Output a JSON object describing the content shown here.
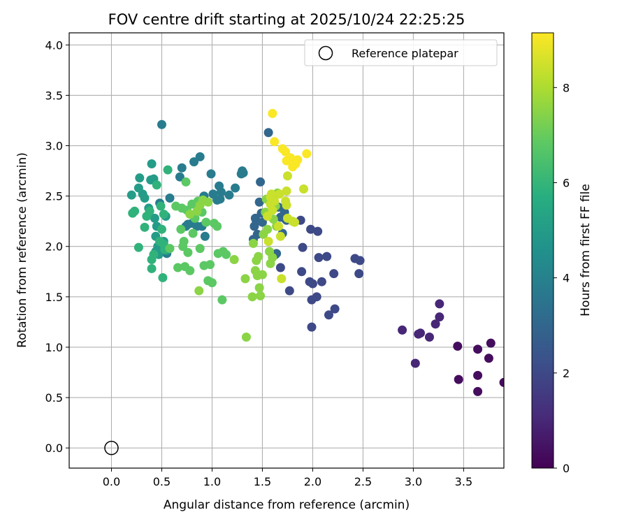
{
  "chart_data": {
    "type": "scatter",
    "title": "FOV centre drift starting at 2025/10/24 22:25:25",
    "xlabel": "Angular distance from reference (arcmin)",
    "ylabel": "Rotation from reference (arcmin)",
    "xlim": [
      -0.42,
      3.9
    ],
    "ylim": [
      -0.2,
      4.12
    ],
    "xticks": [
      "0.0",
      "0.5",
      "1.0",
      "1.5",
      "2.0",
      "2.5",
      "3.0",
      "3.5"
    ],
    "yticks": [
      "0.0",
      "0.5",
      "1.0",
      "1.5",
      "2.0",
      "2.5",
      "3.0",
      "3.5",
      "4.0"
    ],
    "grid": true,
    "legend": {
      "label": "Reference platepar",
      "placement": "top-right"
    },
    "reference_point": {
      "x": 0.0,
      "y": 0.0
    },
    "colorbar": {
      "label": "Hours from first FF file",
      "colormap": "viridis",
      "range": [
        0,
        9.15
      ],
      "ticks": [
        "0",
        "2",
        "4",
        "6",
        "8"
      ]
    },
    "series": [
      {
        "hours": 0.3,
        "points": [
          [
            3.77,
            1.04
          ],
          [
            3.75,
            0.89
          ],
          [
            3.64,
            0.98
          ],
          [
            3.64,
            0.72
          ],
          [
            3.64,
            0.56
          ],
          [
            3.45,
            0.68
          ],
          [
            3.44,
            1.01
          ],
          [
            3.9,
            0.65
          ]
        ]
      },
      {
        "hours": 1.0,
        "points": [
          [
            2.89,
            1.17
          ],
          [
            3.02,
            0.84
          ],
          [
            3.05,
            1.13
          ],
          [
            3.07,
            1.14
          ],
          [
            3.16,
            1.1
          ],
          [
            3.22,
            1.23
          ],
          [
            3.26,
            1.43
          ],
          [
            3.26,
            1.3
          ]
        ]
      },
      {
        "hours": 2.0,
        "points": [
          [
            1.88,
            2.26
          ],
          [
            1.9,
            1.99
          ],
          [
            1.89,
            1.75
          ],
          [
            1.97,
            1.65
          ],
          [
            1.98,
            2.17
          ],
          [
            1.99,
            1.47
          ],
          [
            2.0,
            1.63
          ],
          [
            1.99,
            1.2
          ],
          [
            2.04,
            1.5
          ],
          [
            2.05,
            2.15
          ],
          [
            2.06,
            1.89
          ],
          [
            2.09,
            1.65
          ],
          [
            2.14,
            1.9
          ],
          [
            2.16,
            1.32
          ],
          [
            2.21,
            1.73
          ],
          [
            2.22,
            1.38
          ],
          [
            2.42,
            1.88
          ],
          [
            2.47,
            1.86
          ],
          [
            2.46,
            1.73
          ],
          [
            1.77,
            1.56
          ],
          [
            1.68,
            1.79
          ]
        ]
      },
      {
        "hours": 3.0,
        "points": [
          [
            1.41,
            2.07
          ],
          [
            1.42,
            2.2
          ],
          [
            1.43,
            2.28
          ],
          [
            1.44,
            2.25
          ],
          [
            1.45,
            2.12
          ],
          [
            1.47,
            2.44
          ],
          [
            1.48,
            2.64
          ],
          [
            1.49,
            2.33
          ],
          [
            1.5,
            2.24
          ],
          [
            1.56,
            3.13
          ],
          [
            1.64,
            1.93
          ],
          [
            1.66,
            2.39
          ],
          [
            1.68,
            2.29
          ],
          [
            1.7,
            2.13
          ],
          [
            1.72,
            2.34
          ],
          [
            1.73,
            2.27
          ],
          [
            1.74,
            2.26
          ],
          [
            1.63,
            1.92
          ]
        ]
      },
      {
        "hours": 3.8,
        "points": [
          [
            0.48,
            2.43
          ],
          [
            0.5,
            3.21
          ],
          [
            0.55,
            1.93
          ],
          [
            0.58,
            2.48
          ],
          [
            0.68,
            2.69
          ],
          [
            0.7,
            2.78
          ],
          [
            0.82,
            2.84
          ],
          [
            0.88,
            2.89
          ],
          [
            0.9,
            2.2
          ],
          [
            0.92,
            2.5
          ],
          [
            0.93,
            2.1
          ],
          [
            0.99,
            2.72
          ],
          [
            1.01,
            2.52
          ],
          [
            1.05,
            2.46
          ],
          [
            1.07,
            2.6
          ],
          [
            1.08,
            2.47
          ],
          [
            1.09,
            2.54
          ],
          [
            1.17,
            2.51
          ],
          [
            1.23,
            2.58
          ],
          [
            1.29,
            2.72
          ],
          [
            1.3,
            2.75
          ],
          [
            1.31,
            2.73
          ],
          [
            0.8,
            2.23
          ],
          [
            0.85,
            2.2
          ],
          [
            0.74,
            2.2
          ],
          [
            0.76,
            2.22
          ]
        ]
      },
      {
        "hours": 5.0,
        "points": [
          [
            0.2,
            2.51
          ],
          [
            0.27,
            2.58
          ],
          [
            0.28,
            2.68
          ],
          [
            0.31,
            2.52
          ],
          [
            0.33,
            2.48
          ],
          [
            0.37,
            2.38
          ],
          [
            0.4,
            2.82
          ],
          [
            0.39,
            2.66
          ],
          [
            0.42,
            2.67
          ],
          [
            0.43,
            2.28
          ],
          [
            0.45,
            2.2
          ],
          [
            0.44,
            2.1
          ],
          [
            0.46,
            2.0
          ],
          [
            0.44,
            1.95
          ],
          [
            0.47,
            1.92
          ],
          [
            0.52,
            2.05
          ],
          [
            0.54,
            2.3
          ],
          [
            0.55,
            1.96
          ]
        ]
      },
      {
        "hours": 5.9,
        "points": [
          [
            0.21,
            2.33
          ],
          [
            0.23,
            2.35
          ],
          [
            0.27,
            1.99
          ],
          [
            0.33,
            2.19
          ],
          [
            0.35,
            2.3
          ],
          [
            0.38,
            2.35
          ],
          [
            0.4,
            1.78
          ],
          [
            0.4,
            1.87
          ],
          [
            0.42,
            1.92
          ],
          [
            0.45,
            2.61
          ],
          [
            0.48,
            2.05
          ],
          [
            0.5,
            2.17
          ],
          [
            0.51,
            1.69
          ],
          [
            0.52,
            2.02
          ],
          [
            0.53,
            1.97
          ],
          [
            0.56,
            2.76
          ],
          [
            0.49,
            2.4
          ],
          [
            0.52,
            2.32
          ]
        ]
      },
      {
        "hours": 6.8,
        "points": [
          [
            0.58,
            1.98
          ],
          [
            0.64,
            2.4
          ],
          [
            0.66,
            1.79
          ],
          [
            0.69,
            2.17
          ],
          [
            0.71,
            2.0
          ],
          [
            0.73,
            1.8
          ],
          [
            0.74,
            2.64
          ],
          [
            0.75,
            2.36
          ],
          [
            0.76,
            1.94
          ],
          [
            0.78,
            1.76
          ],
          [
            0.8,
            2.42
          ],
          [
            0.81,
            2.13
          ],
          [
            0.83,
            2.28
          ],
          [
            0.86,
            2.45
          ],
          [
            0.88,
            1.98
          ],
          [
            0.9,
            2.34
          ],
          [
            0.92,
            1.81
          ],
          [
            0.94,
            2.24
          ],
          [
            0.96,
            1.66
          ],
          [
            0.98,
            1.82
          ],
          [
            1.0,
            1.64
          ],
          [
            1.02,
            2.23
          ],
          [
            1.05,
            2.2
          ],
          [
            1.06,
            1.93
          ],
          [
            1.1,
            1.47
          ],
          [
            1.11,
            1.95
          ],
          [
            1.14,
            1.92
          ],
          [
            0.72,
            2.05
          ],
          [
            0.7,
            2.38
          ]
        ]
      },
      {
        "hours": 7.5,
        "points": [
          [
            0.78,
            2.32
          ],
          [
            0.85,
            2.35
          ],
          [
            0.88,
            2.41
          ],
          [
            0.91,
            2.46
          ],
          [
            0.96,
            2.44
          ],
          [
            0.87,
            1.56
          ],
          [
            1.22,
            1.87
          ],
          [
            1.34,
            1.1
          ],
          [
            1.33,
            1.68
          ],
          [
            1.4,
            1.5
          ],
          [
            1.43,
            1.76
          ],
          [
            1.44,
            1.86
          ],
          [
            1.45,
            1.71
          ],
          [
            1.46,
            1.9
          ],
          [
            1.47,
            1.59
          ],
          [
            1.48,
            1.51
          ],
          [
            1.5,
            1.72
          ],
          [
            1.41,
            2.03
          ],
          [
            1.51,
            2.12
          ],
          [
            1.53,
            2.34
          ],
          [
            1.55,
            2.17
          ],
          [
            1.54,
            2.47
          ],
          [
            1.57,
            1.95
          ],
          [
            1.58,
            1.83
          ],
          [
            1.6,
            1.89
          ],
          [
            1.61,
            2.27
          ],
          [
            1.63,
            2.4
          ],
          [
            1.64,
            2.2
          ],
          [
            1.65,
            2.53
          ]
        ]
      },
      {
        "hours": 8.4,
        "points": [
          [
            1.55,
            2.3
          ],
          [
            1.56,
            2.05
          ],
          [
            1.58,
            2.42
          ],
          [
            1.59,
            2.52
          ],
          [
            1.6,
            2.36
          ],
          [
            1.62,
            2.45
          ],
          [
            1.66,
            2.2
          ],
          [
            1.67,
            2.52
          ],
          [
            1.68,
            2.1
          ],
          [
            1.69,
            1.68
          ],
          [
            1.73,
            2.45
          ],
          [
            1.74,
            2.41
          ],
          [
            1.74,
            2.55
          ],
          [
            1.75,
            2.28
          ],
          [
            1.75,
            2.7
          ],
          [
            1.8,
            2.25
          ],
          [
            1.82,
            2.24
          ],
          [
            1.91,
            2.57
          ],
          [
            1.58,
            2.49
          ]
        ]
      },
      {
        "hours": 9.1,
        "points": [
          [
            1.6,
            3.32
          ],
          [
            1.62,
            3.04
          ],
          [
            1.7,
            2.97
          ],
          [
            1.73,
            2.94
          ],
          [
            1.74,
            2.85
          ],
          [
            1.78,
            2.88
          ],
          [
            1.8,
            2.79
          ],
          [
            1.83,
            2.82
          ],
          [
            1.85,
            2.86
          ],
          [
            1.94,
            2.92
          ]
        ]
      }
    ]
  }
}
